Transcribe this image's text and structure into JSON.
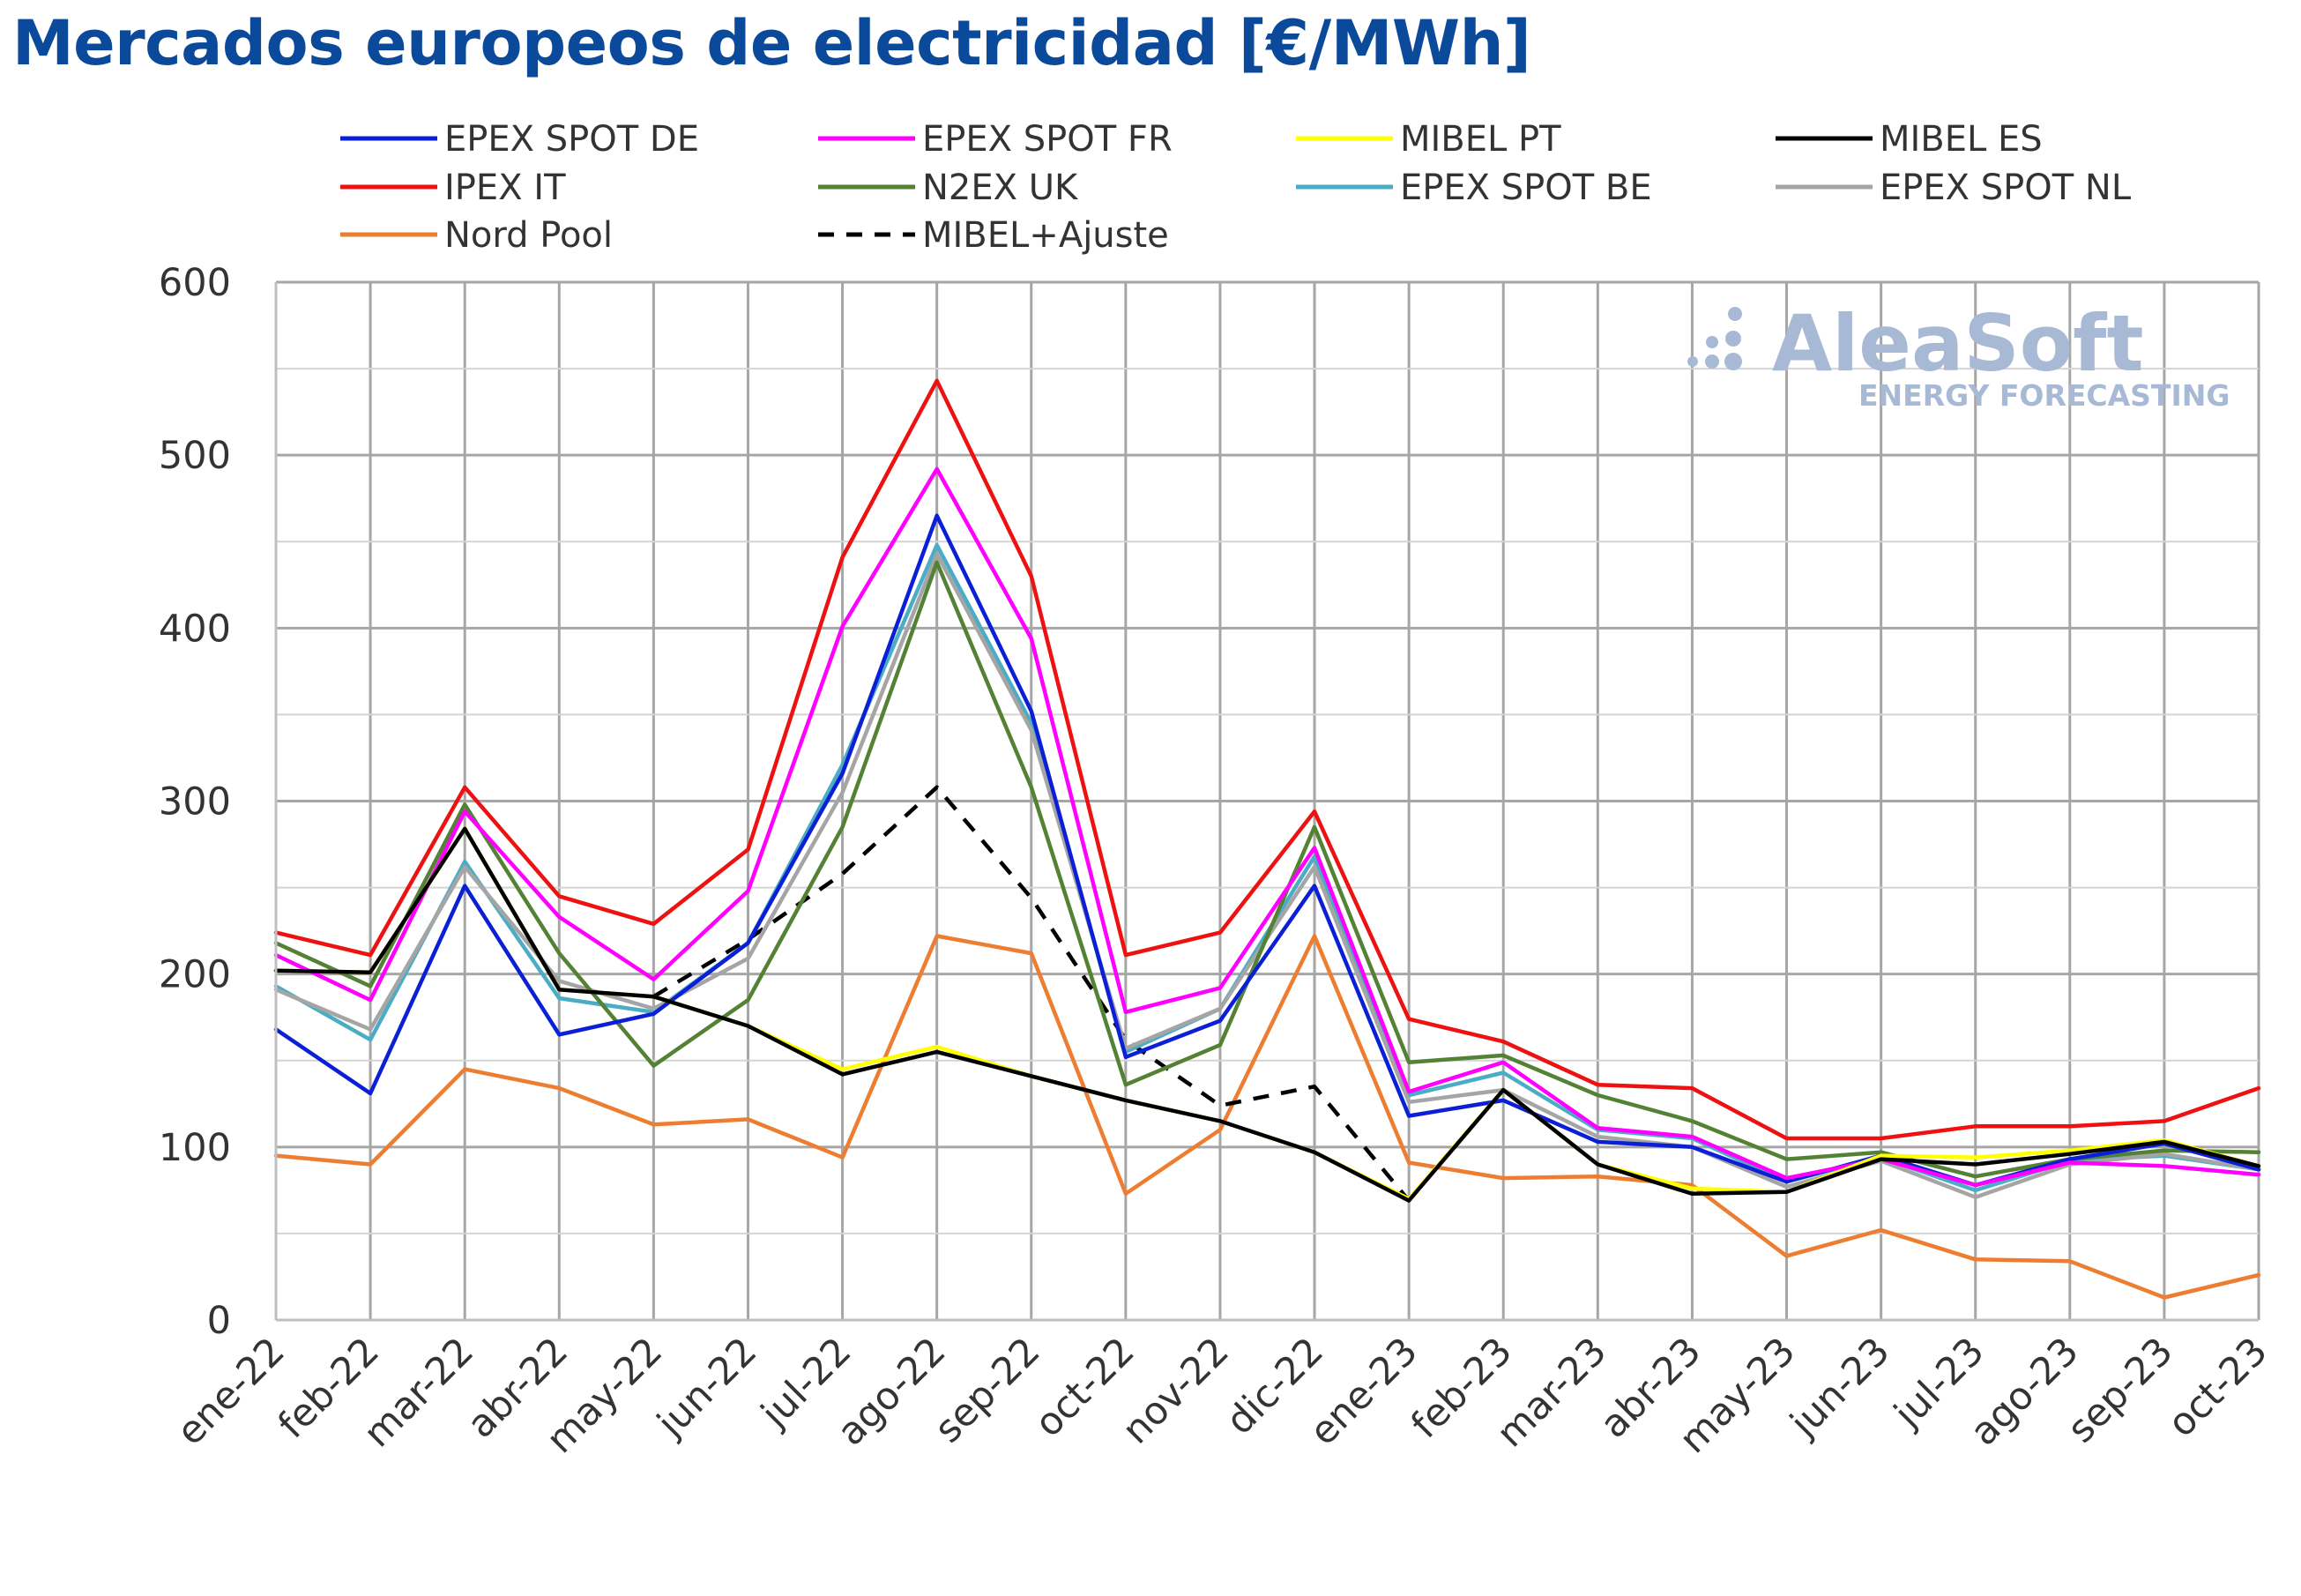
{
  "chart_data": {
    "type": "line",
    "title": "Mercados europeos de electricidad [€/MWh]",
    "xlabel": "",
    "ylabel": "",
    "ylim": [
      0,
      600
    ],
    "yticks": [
      0,
      100,
      200,
      300,
      400,
      500,
      600
    ],
    "grid": true,
    "legend_position": "top",
    "categories": [
      "ene-22",
      "feb-22",
      "mar-22",
      "abr-22",
      "may-22",
      "jun-22",
      "jul-22",
      "ago-22",
      "sep-22",
      "oct-22",
      "nov-22",
      "dic-22",
      "ene-23",
      "feb-23",
      "mar-23",
      "abr-23",
      "may-23",
      "jun-23",
      "jul-23",
      "ago-23",
      "sep-23",
      "oct-23"
    ],
    "series": [
      {
        "name": "EPEX SPOT DE",
        "color": "#0a1fd6",
        "dash": false,
        "values": [
          168,
          131,
          251,
          165,
          177,
          218,
          316,
          465,
          352,
          152,
          173,
          251,
          118,
          127,
          103,
          100,
          80,
          95,
          78,
          93,
          102,
          87
        ]
      },
      {
        "name": "EPEX SPOT FR",
        "color": "#ff00ff",
        "dash": false,
        "values": [
          211,
          185,
          294,
          233,
          197,
          248,
          401,
          492,
          394,
          178,
          192,
          273,
          132,
          149,
          111,
          106,
          82,
          93,
          78,
          91,
          89,
          84
        ]
      },
      {
        "name": "MIBEL PT",
        "color": "#ffff00",
        "dash": false,
        "values": [
          202,
          201,
          284,
          191,
          187,
          170,
          145,
          158,
          141,
          127,
          115,
          97,
          70,
          133,
          90,
          76,
          74,
          95,
          94,
          98,
          104,
          89
        ]
      },
      {
        "name": "MIBEL ES",
        "color": "#000000",
        "dash": false,
        "values": [
          202,
          201,
          284,
          191,
          187,
          170,
          142,
          155,
          141,
          127,
          115,
          97,
          69,
          133,
          90,
          73,
          74,
          93,
          90,
          96,
          103,
          89
        ]
      },
      {
        "name": "IPEX IT",
        "color": "#ee1111",
        "dash": false,
        "values": [
          224,
          211,
          308,
          245,
          229,
          272,
          441,
          543,
          430,
          211,
          224,
          294,
          174,
          161,
          136,
          134,
          105,
          105,
          112,
          112,
          115,
          134
        ]
      },
      {
        "name": "N2EX UK",
        "color": "#548235",
        "dash": false,
        "values": [
          218,
          193,
          298,
          212,
          147,
          185,
          285,
          438,
          308,
          136,
          159,
          285,
          149,
          153,
          130,
          115,
          93,
          97,
          83,
          93,
          98,
          97
        ]
      },
      {
        "name": "EPEX SPOT BE",
        "color": "#4bacc6",
        "dash": false,
        "values": [
          193,
          162,
          265,
          186,
          178,
          218,
          321,
          448,
          345,
          155,
          180,
          268,
          130,
          143,
          110,
          105,
          80,
          94,
          75,
          92,
          95,
          87
        ]
      },
      {
        "name": "EPEX SPOT NL",
        "color": "#a5a5a5",
        "dash": false,
        "values": [
          191,
          168,
          262,
          196,
          180,
          209,
          305,
          443,
          341,
          157,
          180,
          262,
          126,
          133,
          106,
          100,
          77,
          92,
          71,
          90,
          96,
          87
        ]
      },
      {
        "name": "Nord Pool",
        "color": "#ed7d31",
        "dash": false,
        "values": [
          95,
          90,
          145,
          134,
          113,
          116,
          94,
          222,
          212,
          73,
          110,
          222,
          91,
          82,
          83,
          78,
          37,
          52,
          35,
          34,
          13,
          26
        ]
      },
      {
        "name": "MIBEL+Ajuste",
        "color": "#000000",
        "dash": true,
        "values": [
          null,
          null,
          null,
          null,
          187,
          220,
          258,
          308,
          244,
          162,
          124,
          135,
          69,
          null,
          null,
          null,
          null,
          null,
          null,
          null,
          null,
          null
        ]
      }
    ]
  },
  "watermark": {
    "brand": "AleaSoft",
    "tagline": "ENERGY FORECASTING",
    "color": "#a8b9d6"
  }
}
